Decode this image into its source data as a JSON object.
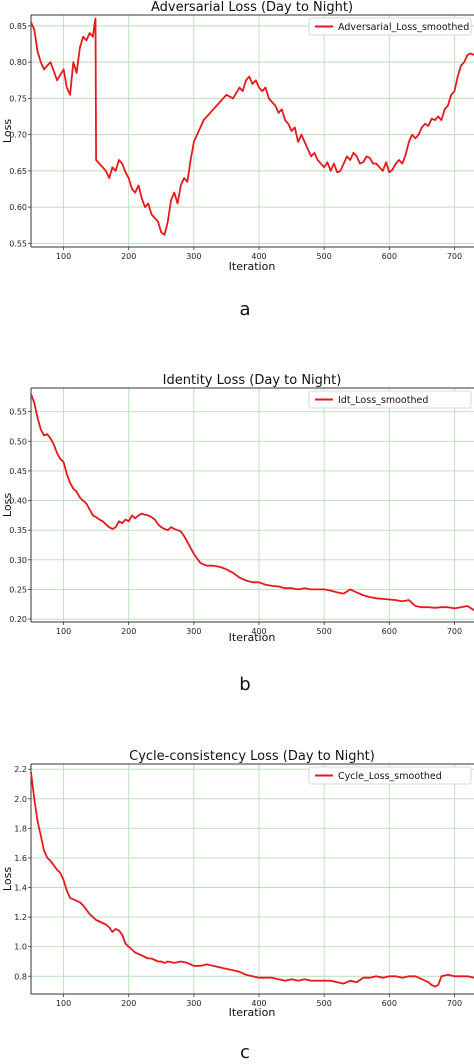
{
  "chart_data": [
    {
      "type": "line",
      "title": "Adversarial Loss (Day to Night)",
      "xlabel": "Iteration",
      "ylabel": "Loss",
      "xlim": [
        50,
        730
      ],
      "ylim": [
        0.545,
        0.865
      ],
      "xticks": [
        "100",
        "200",
        "300",
        "400",
        "500",
        "600",
        "700"
      ],
      "xtick_values": [
        100,
        200,
        300,
        400,
        500,
        600,
        700
      ],
      "yticks": [
        "0.55",
        "0.60",
        "0.65",
        "0.70",
        "0.75",
        "0.80",
        "0.85"
      ],
      "ytick_values": [
        0.55,
        0.6,
        0.65,
        0.7,
        0.75,
        0.8,
        0.85
      ],
      "grid": true,
      "legend_position": "top-right",
      "panel_label": "a",
      "color": "#e41a1c",
      "series": [
        {
          "name": "Adversarial_Loss_smoothed",
          "x": [
            50,
            55,
            60,
            65,
            70,
            80,
            90,
            100,
            105,
            110,
            115,
            120,
            125,
            130,
            135,
            140,
            145,
            148,
            149,
            150,
            155,
            160,
            165,
            170,
            175,
            180,
            185,
            190,
            195,
            200,
            205,
            210,
            215,
            220,
            225,
            230,
            235,
            240,
            245,
            250,
            255,
            260,
            265,
            270,
            275,
            280,
            285,
            290,
            295,
            300,
            305,
            310,
            315,
            320,
            330,
            340,
            350,
            360,
            370,
            375,
            380,
            385,
            390,
            395,
            400,
            405,
            410,
            415,
            420,
            425,
            430,
            435,
            440,
            445,
            450,
            455,
            460,
            465,
            470,
            475,
            480,
            485,
            490,
            495,
            500,
            505,
            510,
            515,
            520,
            525,
            530,
            535,
            540,
            545,
            550,
            555,
            560,
            565,
            570,
            575,
            580,
            585,
            590,
            595,
            600,
            605,
            610,
            615,
            620,
            625,
            630,
            635,
            640,
            645,
            650,
            655,
            660,
            665,
            670,
            675,
            680,
            685,
            690,
            695,
            700,
            705,
            710,
            715,
            720,
            725,
            730
          ],
          "values": [
            0.855,
            0.845,
            0.815,
            0.8,
            0.79,
            0.8,
            0.775,
            0.79,
            0.765,
            0.755,
            0.8,
            0.785,
            0.82,
            0.835,
            0.83,
            0.84,
            0.835,
            0.855,
            0.86,
            0.665,
            0.66,
            0.655,
            0.65,
            0.64,
            0.655,
            0.65,
            0.665,
            0.66,
            0.648,
            0.64,
            0.625,
            0.62,
            0.63,
            0.612,
            0.6,
            0.605,
            0.59,
            0.585,
            0.58,
            0.565,
            0.562,
            0.58,
            0.61,
            0.62,
            0.605,
            0.63,
            0.64,
            0.635,
            0.665,
            0.69,
            0.7,
            0.71,
            0.72,
            0.725,
            0.735,
            0.745,
            0.755,
            0.75,
            0.765,
            0.76,
            0.775,
            0.78,
            0.77,
            0.775,
            0.765,
            0.76,
            0.765,
            0.75,
            0.745,
            0.74,
            0.73,
            0.735,
            0.72,
            0.715,
            0.705,
            0.71,
            0.69,
            0.7,
            0.69,
            0.68,
            0.67,
            0.675,
            0.665,
            0.66,
            0.655,
            0.662,
            0.65,
            0.66,
            0.648,
            0.65,
            0.66,
            0.67,
            0.665,
            0.675,
            0.67,
            0.66,
            0.662,
            0.67,
            0.668,
            0.66,
            0.66,
            0.655,
            0.65,
            0.662,
            0.648,
            0.652,
            0.66,
            0.665,
            0.66,
            0.672,
            0.69,
            0.7,
            0.695,
            0.7,
            0.71,
            0.715,
            0.712,
            0.722,
            0.72,
            0.725,
            0.72,
            0.735,
            0.74,
            0.755,
            0.76,
            0.78,
            0.795,
            0.8,
            0.81,
            0.812,
            0.81
          ]
        }
      ]
    },
    {
      "type": "line",
      "title": "Identity Loss (Day to Night)",
      "xlabel": "Iteration",
      "ylabel": "Loss",
      "xlim": [
        50,
        730
      ],
      "ylim": [
        0.195,
        0.59
      ],
      "xticks": [
        "100",
        "200",
        "300",
        "400",
        "500",
        "600",
        "700"
      ],
      "xtick_values": [
        100,
        200,
        300,
        400,
        500,
        600,
        700
      ],
      "yticks": [
        "0.20",
        "0.25",
        "0.30",
        "0.35",
        "0.40",
        "0.45",
        "0.50",
        "0.55"
      ],
      "ytick_values": [
        0.2,
        0.25,
        0.3,
        0.35,
        0.4,
        0.45,
        0.5,
        0.55
      ],
      "grid": true,
      "legend_position": "top-right",
      "panel_label": "b",
      "color": "#e41a1c",
      "series": [
        {
          "name": "Idt_Loss_smoothed",
          "x": [
            50,
            55,
            60,
            65,
            70,
            75,
            80,
            85,
            90,
            95,
            100,
            105,
            110,
            115,
            120,
            125,
            130,
            135,
            140,
            145,
            150,
            155,
            160,
            165,
            170,
            175,
            180,
            185,
            190,
            195,
            200,
            205,
            210,
            215,
            220,
            225,
            230,
            235,
            240,
            245,
            250,
            255,
            260,
            265,
            270,
            275,
            280,
            285,
            290,
            295,
            300,
            305,
            310,
            315,
            320,
            330,
            340,
            350,
            360,
            370,
            380,
            390,
            400,
            410,
            420,
            430,
            440,
            450,
            460,
            470,
            480,
            490,
            500,
            510,
            520,
            530,
            540,
            550,
            560,
            570,
            580,
            590,
            600,
            610,
            620,
            630,
            640,
            650,
            660,
            670,
            680,
            690,
            700,
            710,
            720,
            730
          ],
          "values": [
            0.58,
            0.565,
            0.54,
            0.52,
            0.51,
            0.512,
            0.505,
            0.495,
            0.48,
            0.47,
            0.465,
            0.445,
            0.43,
            0.42,
            0.415,
            0.405,
            0.4,
            0.395,
            0.385,
            0.375,
            0.372,
            0.368,
            0.365,
            0.36,
            0.355,
            0.352,
            0.355,
            0.365,
            0.362,
            0.368,
            0.365,
            0.375,
            0.37,
            0.375,
            0.378,
            0.376,
            0.375,
            0.372,
            0.368,
            0.36,
            0.355,
            0.352,
            0.35,
            0.355,
            0.352,
            0.35,
            0.348,
            0.34,
            0.33,
            0.32,
            0.31,
            0.302,
            0.295,
            0.292,
            0.29,
            0.29,
            0.288,
            0.284,
            0.278,
            0.27,
            0.265,
            0.262,
            0.262,
            0.258,
            0.256,
            0.255,
            0.252,
            0.252,
            0.25,
            0.252,
            0.25,
            0.25,
            0.25,
            0.248,
            0.245,
            0.243,
            0.25,
            0.245,
            0.24,
            0.237,
            0.235,
            0.234,
            0.233,
            0.232,
            0.23,
            0.232,
            0.222,
            0.22,
            0.22,
            0.219,
            0.22,
            0.22,
            0.218,
            0.22,
            0.222,
            0.215
          ]
        }
      ]
    },
    {
      "type": "line",
      "title": "Cycle-consistency Loss (Day to Night)",
      "xlabel": "Iteration",
      "ylabel": "Loss",
      "xlim": [
        50,
        730
      ],
      "ylim": [
        0.68,
        2.235
      ],
      "xticks": [
        "100",
        "200",
        "300",
        "400",
        "500",
        "600",
        "700"
      ],
      "xtick_values": [
        100,
        200,
        300,
        400,
        500,
        600,
        700
      ],
      "yticks": [
        "0.8",
        "1.0",
        "1.2",
        "1.4",
        "1.6",
        "1.8",
        "2.0",
        "2.2"
      ],
      "ytick_values": [
        0.8,
        1.0,
        1.2,
        1.4,
        1.6,
        1.8,
        2.0,
        2.2
      ],
      "grid": true,
      "legend_position": "top-right",
      "panel_label": "c",
      "color": "#e41a1c",
      "series": [
        {
          "name": "Cycle_Loss_smoothed",
          "x": [
            50,
            55,
            60,
            65,
            70,
            75,
            80,
            85,
            90,
            95,
            100,
            105,
            110,
            115,
            120,
            125,
            130,
            135,
            140,
            145,
            150,
            155,
            160,
            165,
            170,
            175,
            180,
            185,
            190,
            195,
            200,
            205,
            210,
            215,
            220,
            225,
            230,
            235,
            240,
            245,
            250,
            255,
            260,
            270,
            280,
            290,
            300,
            310,
            320,
            330,
            340,
            350,
            360,
            370,
            380,
            390,
            400,
            410,
            420,
            430,
            440,
            450,
            460,
            470,
            480,
            490,
            500,
            510,
            520,
            530,
            540,
            550,
            560,
            570,
            580,
            590,
            600,
            610,
            620,
            630,
            640,
            650,
            660,
            665,
            670,
            675,
            680,
            690,
            700,
            710,
            720,
            730
          ],
          "values": [
            2.18,
            2.0,
            1.85,
            1.75,
            1.65,
            1.6,
            1.58,
            1.55,
            1.52,
            1.5,
            1.45,
            1.38,
            1.33,
            1.32,
            1.31,
            1.3,
            1.28,
            1.25,
            1.22,
            1.2,
            1.18,
            1.17,
            1.16,
            1.15,
            1.13,
            1.1,
            1.12,
            1.11,
            1.08,
            1.02,
            1.0,
            0.98,
            0.96,
            0.95,
            0.94,
            0.93,
            0.92,
            0.92,
            0.91,
            0.9,
            0.9,
            0.89,
            0.9,
            0.89,
            0.9,
            0.89,
            0.87,
            0.87,
            0.88,
            0.87,
            0.86,
            0.85,
            0.84,
            0.83,
            0.81,
            0.8,
            0.79,
            0.79,
            0.79,
            0.78,
            0.77,
            0.78,
            0.77,
            0.78,
            0.77,
            0.77,
            0.77,
            0.77,
            0.76,
            0.75,
            0.77,
            0.76,
            0.79,
            0.79,
            0.8,
            0.79,
            0.8,
            0.8,
            0.79,
            0.8,
            0.8,
            0.78,
            0.76,
            0.74,
            0.73,
            0.74,
            0.8,
            0.81,
            0.8,
            0.8,
            0.8,
            0.79
          ]
        }
      ]
    }
  ]
}
